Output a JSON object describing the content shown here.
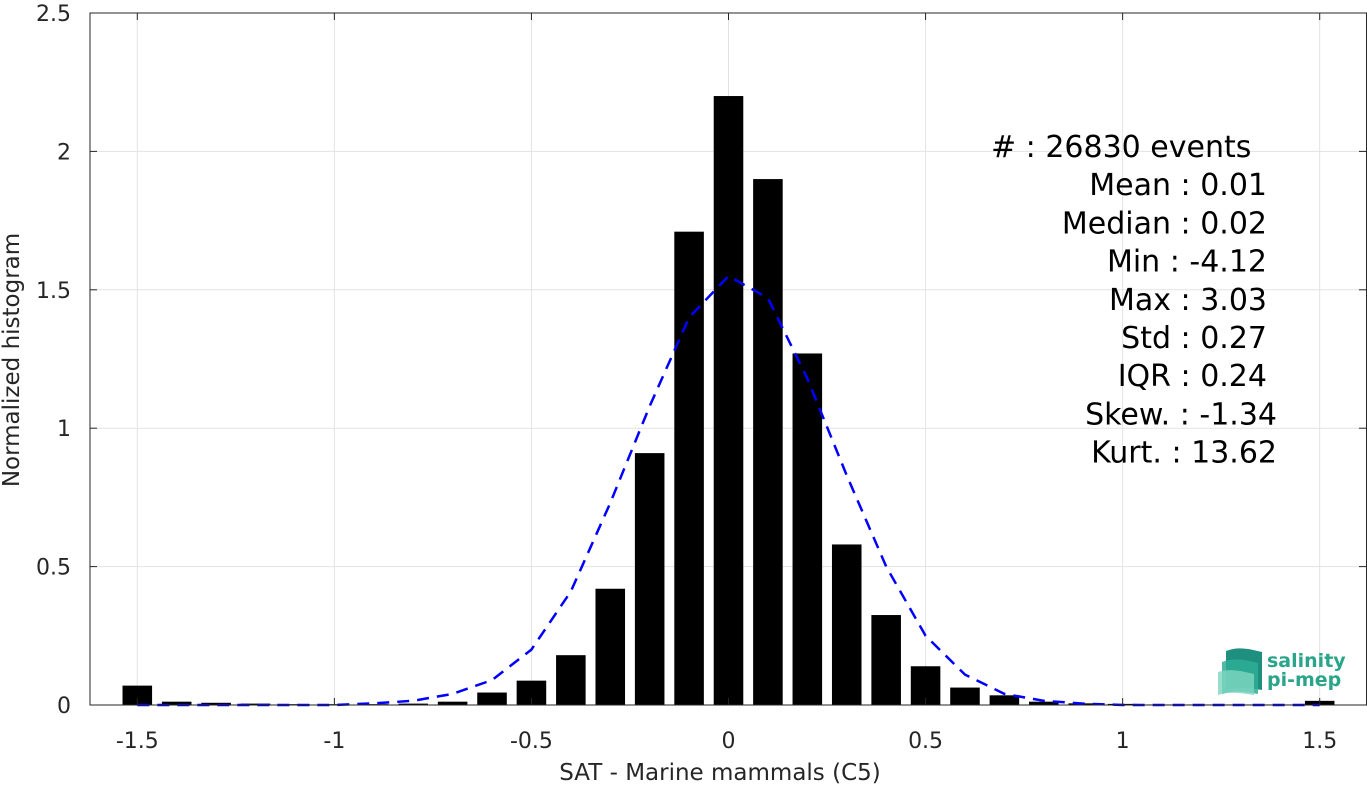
{
  "chart_data": {
    "type": "bar",
    "xlabel": "SAT - Marine mammals (C5)",
    "ylabel": "Normalized histogram",
    "xlim": [
      -1.62,
      1.62
    ],
    "ylim": [
      0,
      2.5
    ],
    "xticks": [
      -1.5,
      -1,
      -0.5,
      0,
      0.5,
      1,
      1.5
    ],
    "xtick_labels": [
      "-1.5",
      "-1",
      "-0.5",
      "0",
      "0.5",
      "1",
      "1.5"
    ],
    "yticks": [
      0,
      0.5,
      1,
      1.5,
      2,
      2.5
    ],
    "ytick_labels": [
      "0",
      "0.5",
      "1",
      "1.5",
      "2",
      "2.5"
    ],
    "grid": true,
    "bar_width": 0.075,
    "bar_color": "#000000",
    "bars": {
      "x": [
        -1.5,
        -1.4,
        -1.3,
        -1.2,
        -1.1,
        -1.0,
        -0.9,
        -0.8,
        -0.7,
        -0.6,
        -0.5,
        -0.4,
        -0.3,
        -0.2,
        -0.1,
        0.0,
        0.1,
        0.2,
        0.3,
        0.4,
        0.5,
        0.6,
        0.7,
        0.8,
        0.9,
        1.0,
        1.1,
        1.2,
        1.3,
        1.4,
        1.5
      ],
      "y": [
        0.07,
        0.012,
        0.008,
        0.005,
        0.003,
        0.003,
        0.003,
        0.005,
        0.012,
        0.045,
        0.088,
        0.18,
        0.42,
        0.91,
        1.71,
        2.2,
        1.9,
        1.27,
        0.58,
        0.325,
        0.14,
        0.063,
        0.035,
        0.012,
        0.006,
        0.004,
        0.002,
        0.002,
        0.002,
        0.002,
        0.015
      ]
    },
    "fit_curve": {
      "style": "dashed",
      "color": "#0000ff",
      "x": [
        -1.5,
        -1.4,
        -1.3,
        -1.2,
        -1.1,
        -1.0,
        -0.9,
        -0.8,
        -0.7,
        -0.6,
        -0.5,
        -0.4,
        -0.3,
        -0.2,
        -0.1,
        0.0,
        0.1,
        0.2,
        0.3,
        0.4,
        0.5,
        0.6,
        0.7,
        0.8,
        0.9,
        1.0,
        1.1,
        1.2,
        1.3,
        1.4,
        1.5
      ],
      "y": [
        0.0,
        0.0,
        0.0,
        0.0,
        0.0,
        0.0,
        0.006,
        0.015,
        0.04,
        0.09,
        0.2,
        0.41,
        0.73,
        1.08,
        1.4,
        1.55,
        1.47,
        1.18,
        0.83,
        0.5,
        0.25,
        0.11,
        0.04,
        0.015,
        0.005,
        0.0,
        0.0,
        0.0,
        0.0,
        0.0,
        0.0
      ]
    }
  },
  "stats": [
    {
      "label": "#  : 26830 events",
      "anchor": "start"
    },
    {
      "label": "Mean : 0.01",
      "anchor": "end"
    },
    {
      "label": "Median : 0.02",
      "anchor": "end"
    },
    {
      "label": "Min : -4.12",
      "anchor": "end"
    },
    {
      "label": "Max : 3.03",
      "anchor": "end"
    },
    {
      "label": "Std : 0.27",
      "anchor": "end"
    },
    {
      "label": "IQR : 0.24",
      "anchor": "end"
    },
    {
      "label": "Skew. : -1.34",
      "anchor": "end2"
    },
    {
      "label": "Kurt. : 13.62",
      "anchor": "end2"
    }
  ],
  "logo": {
    "line1": "salinity",
    "line2": "pi-mep",
    "color": "#2ba58a"
  }
}
